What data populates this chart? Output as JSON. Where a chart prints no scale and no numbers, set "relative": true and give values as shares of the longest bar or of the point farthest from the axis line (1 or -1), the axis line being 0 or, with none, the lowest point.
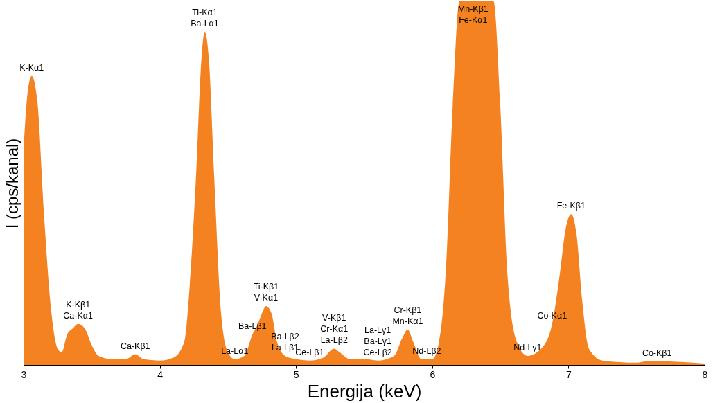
{
  "chart_data": {
    "type": "area",
    "relative": true,
    "xlabel": "Energija (keV)",
    "ylabel": "I (cps/kanal)",
    "xlim": [
      3,
      8
    ],
    "xticks": [
      3,
      4,
      5,
      6,
      7,
      8
    ],
    "tick_labels": "x",
    "grid": false,
    "x": [
      3.0,
      3.03,
      3.06,
      3.1,
      3.15,
      3.2,
      3.25,
      3.28,
      3.32,
      3.36,
      3.4,
      3.45,
      3.5,
      3.55,
      3.65,
      3.75,
      3.82,
      3.88,
      4.0,
      4.1,
      4.18,
      4.22,
      4.27,
      4.3,
      4.33,
      4.36,
      4.4,
      4.45,
      4.5,
      4.55,
      4.62,
      4.68,
      4.72,
      4.75,
      4.78,
      4.82,
      4.86,
      4.92,
      5.0,
      5.1,
      5.2,
      5.28,
      5.32,
      5.4,
      5.5,
      5.6,
      5.72,
      5.78,
      5.82,
      5.86,
      5.92,
      6.0,
      6.05,
      6.1,
      6.15,
      6.2,
      6.45,
      6.5,
      6.55,
      6.62,
      6.7,
      6.8,
      6.88,
      6.94,
      6.98,
      7.02,
      7.06,
      7.1,
      7.15,
      7.25,
      7.5,
      7.58,
      7.65,
      8.0
    ],
    "series": [
      {
        "color": "#f58220",
        "values": [
          0.59,
          0.75,
          0.795,
          0.73,
          0.415,
          0.16,
          0.045,
          0.035,
          0.084,
          0.1,
          0.113,
          0.1,
          0.055,
          0.025,
          0.016,
          0.016,
          0.029,
          0.016,
          0.012,
          0.02,
          0.064,
          0.22,
          0.55,
          0.805,
          0.916,
          0.844,
          0.513,
          0.142,
          0.035,
          0.016,
          0.025,
          0.084,
          0.113,
          0.142,
          0.162,
          0.142,
          0.064,
          0.025,
          0.016,
          0.012,
          0.02,
          0.045,
          0.035,
          0.016,
          0.016,
          0.012,
          0.025,
          0.074,
          0.097,
          0.064,
          0.016,
          0.016,
          0.064,
          0.26,
          0.71,
          1,
          1,
          0.71,
          0.26,
          0.064,
          0.025,
          0.045,
          0.113,
          0.26,
          0.376,
          0.415,
          0.357,
          0.18,
          0.045,
          0.012,
          0.006,
          0.01,
          0.01,
          0.004
        ]
      }
    ],
    "annotations": [
      {
        "text": "K-Kα1",
        "x": 3.06,
        "y": 0.795
      },
      {
        "text": "Ba-Lα1",
        "x": 4.33,
        "y": 0.916
      },
      {
        "text": "Ti-Kα1",
        "x": 4.33,
        "y": 0.916
      },
      {
        "text": "Ca-Kα1",
        "x": 3.4,
        "y": 0.113
      },
      {
        "text": "K-Kβ1",
        "x": 3.4,
        "y": 0.113
      },
      {
        "text": "Ca-Kβ1",
        "x": 3.82,
        "y": 0.029
      },
      {
        "text": "La-Lα1",
        "x": 4.55,
        "y": 0.016
      },
      {
        "text": "V-Kα1",
        "x": 4.78,
        "y": 0.162
      },
      {
        "text": "Ti-Kβ1",
        "x": 4.78,
        "y": 0.162
      },
      {
        "text": "Ba-Lβ1",
        "x": 4.68,
        "y": 0.084
      },
      {
        "text": "La-Lβ1",
        "x": 4.92,
        "y": 0.025
      },
      {
        "text": "Ba-Lβ2",
        "x": 4.92,
        "y": 0.025
      },
      {
        "text": "Ce-Lβ1",
        "x": 5.1,
        "y": 0.012
      },
      {
        "text": "La-Lβ2",
        "x": 5.28,
        "y": 0.045
      },
      {
        "text": "Cr-Kα1",
        "x": 5.28,
        "y": 0.045
      },
      {
        "text": "V-Kβ1",
        "x": 5.28,
        "y": 0.045
      },
      {
        "text": "Ce-Lβ2",
        "x": 5.6,
        "y": 0.012
      },
      {
        "text": "Ba-Lγ1",
        "x": 5.6,
        "y": 0.012
      },
      {
        "text": "La-Lγ1",
        "x": 5.6,
        "y": 0.012
      },
      {
        "text": "Mn-Kα1",
        "x": 5.82,
        "y": 0.097
      },
      {
        "text": "Cr-Kβ1",
        "x": 5.82,
        "y": 0.097
      },
      {
        "text": "Nd-Lβ2",
        "x": 5.96,
        "y": 0.016
      },
      {
        "text": "Mn-Kβ1",
        "x": 6.3,
        "y": 1
      },
      {
        "text": "Fe-Kα1",
        "x": 6.3,
        "y": 1
      },
      {
        "text": "Nd-Lγ1",
        "x": 6.7,
        "y": 0.025
      },
      {
        "text": "Fe-Kβ1",
        "x": 7.02,
        "y": 0.415
      },
      {
        "text": "Co-Kα1",
        "x": 6.88,
        "y": 0.113
      },
      {
        "text": "Co-Kβ1",
        "x": 7.65,
        "y": 0.01
      }
    ]
  }
}
